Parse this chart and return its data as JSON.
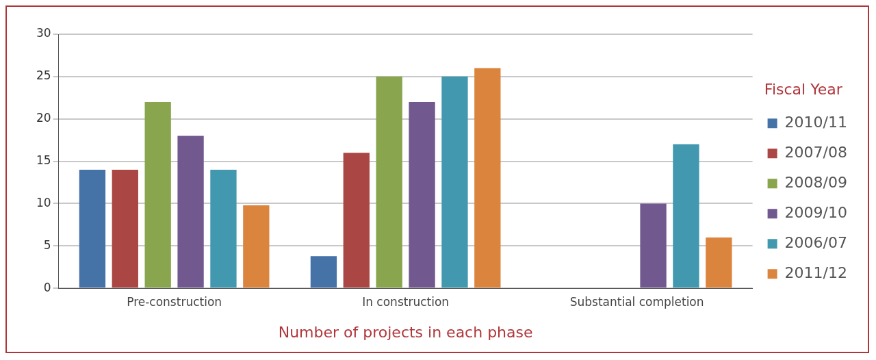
{
  "chart_data": {
    "type": "bar",
    "xlabel": "Number of projects in each phase",
    "legend_title": "Fiscal Year",
    "categories": [
      "Pre-construction",
      "In construction",
      "Substantial completion"
    ],
    "series": [
      {
        "name": "2010/11",
        "color": "#4572a7",
        "values": [
          14,
          3.8,
          null
        ]
      },
      {
        "name": "2007/08",
        "color": "#aa4643",
        "values": [
          14,
          16,
          null
        ]
      },
      {
        "name": "2008/09",
        "color": "#89a54e",
        "values": [
          22,
          25,
          null
        ]
      },
      {
        "name": "2009/10",
        "color": "#71588f",
        "values": [
          18,
          22,
          10
        ]
      },
      {
        "name": "2006/07",
        "color": "#4198af",
        "values": [
          14,
          25,
          17
        ]
      },
      {
        "name": "2011/12",
        "color": "#db843d",
        "values": [
          9.8,
          26,
          6
        ]
      }
    ],
    "ylim": [
      0,
      30
    ],
    "yticks": [
      0,
      5,
      10,
      15,
      20,
      25,
      30
    ],
    "grid": "y",
    "legend": "right"
  }
}
